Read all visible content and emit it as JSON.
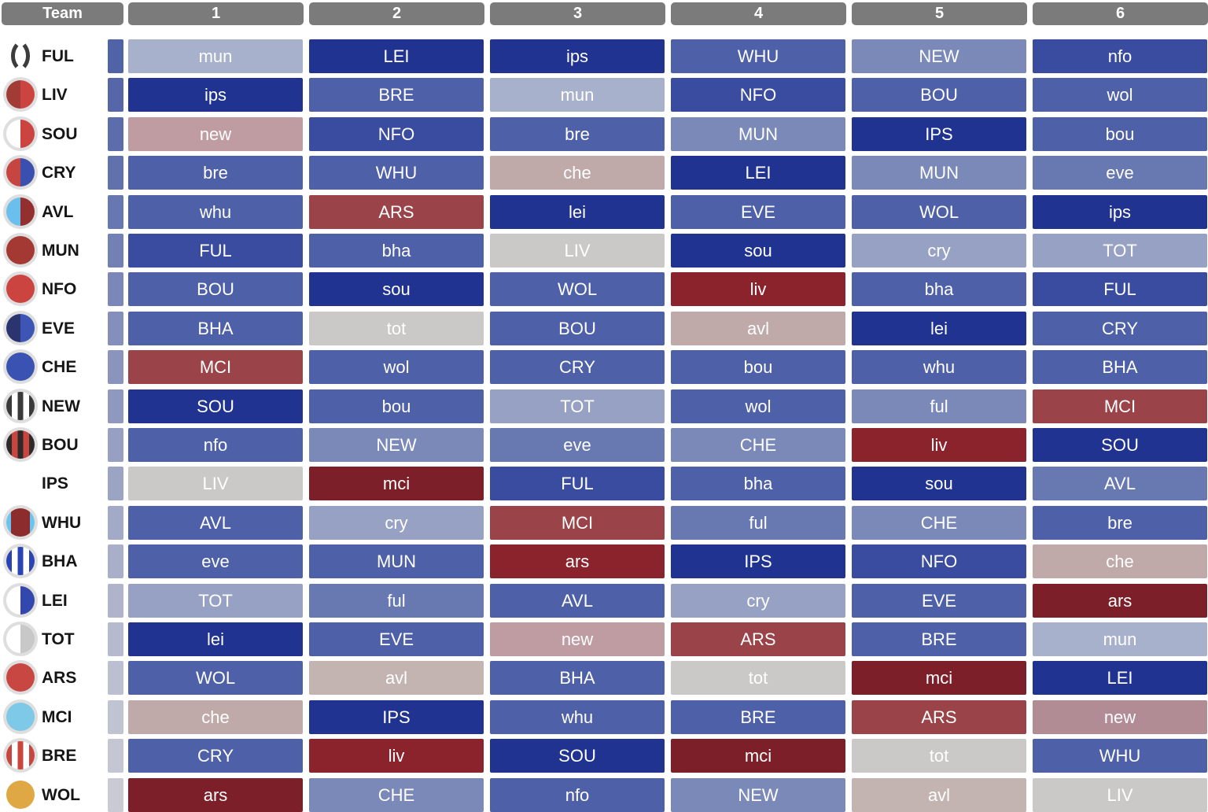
{
  "header": {
    "team_label": "Team",
    "gameweeks": [
      "1",
      "2",
      "3",
      "4",
      "5",
      "6"
    ],
    "bg": "#7B7B7B",
    "text_color": "#FFFFFF"
  },
  "palette": {
    "b1": "#203390",
    "b2": "#3A4C9F",
    "b3": "#4E60A7",
    "b4": "#6878B1",
    "b5": "#7B89B8",
    "b6": "#96A1C4",
    "b7": "#A8B1CB",
    "g": "#CBC9C7",
    "gp": "#C3B3B1",
    "p1": "#C0A9A9",
    "p": "#BF9CA1",
    "dp": "#B28C94",
    "r1": "#9A4349",
    "r2": "#8A232C",
    "r3": "#7D1F28"
  },
  "badge_ring_color": "#DEDEDE",
  "teams": [
    {
      "abbr": "FUL",
      "badge": {
        "type": "parens",
        "colors": [
          "#FFFFFF",
          "#3C3C3C"
        ],
        "ring": false
      },
      "strip_color": "#5063A7",
      "fixtures": [
        {
          "opp": "mun",
          "d": "b7"
        },
        {
          "opp": "LEI",
          "d": "b1"
        },
        {
          "opp": "ips",
          "d": "b1"
        },
        {
          "opp": "WHU",
          "d": "b3"
        },
        {
          "opp": "NEW",
          "d": "b5"
        },
        {
          "opp": "nfo",
          "d": "b2"
        }
      ]
    },
    {
      "abbr": "LIV",
      "badge": {
        "type": "split",
        "colors": [
          "#A23A35",
          "#CB4440"
        ],
        "ring": true
      },
      "strip_color": "#5566A9",
      "fixtures": [
        {
          "opp": "ips",
          "d": "b1"
        },
        {
          "opp": "BRE",
          "d": "b3"
        },
        {
          "opp": "mun",
          "d": "b7"
        },
        {
          "opp": "NFO",
          "d": "b2"
        },
        {
          "opp": "BOU",
          "d": "b3"
        },
        {
          "opp": "wol",
          "d": "b3"
        }
      ]
    },
    {
      "abbr": "SOU",
      "badge": {
        "type": "split",
        "colors": [
          "#FFFFFF",
          "#CB4440"
        ],
        "ring": true
      },
      "strip_color": "#5C6DAC",
      "fixtures": [
        {
          "opp": "new",
          "d": "p"
        },
        {
          "opp": "NFO",
          "d": "b2"
        },
        {
          "opp": "bre",
          "d": "b3"
        },
        {
          "opp": "MUN",
          "d": "b5"
        },
        {
          "opp": "IPS",
          "d": "b1"
        },
        {
          "opp": "bou",
          "d": "b3"
        }
      ]
    },
    {
      "abbr": "CRY",
      "badge": {
        "type": "split",
        "colors": [
          "#C64540",
          "#3B50AE"
        ],
        "ring": true
      },
      "strip_color": "#6071AE",
      "fixtures": [
        {
          "opp": "bre",
          "d": "b3"
        },
        {
          "opp": "WHU",
          "d": "b3"
        },
        {
          "opp": "che",
          "d": "p1"
        },
        {
          "opp": "LEI",
          "d": "b1"
        },
        {
          "opp": "MUN",
          "d": "b5"
        },
        {
          "opp": "eve",
          "d": "b4"
        }
      ]
    },
    {
      "abbr": "AVL",
      "badge": {
        "type": "split",
        "colors": [
          "#69C0ED",
          "#93302F"
        ],
        "ring": true
      },
      "strip_color": "#6677B1",
      "fixtures": [
        {
          "opp": "whu",
          "d": "b3"
        },
        {
          "opp": "ARS",
          "d": "r1"
        },
        {
          "opp": "lei",
          "d": "b1"
        },
        {
          "opp": "EVE",
          "d": "b3"
        },
        {
          "opp": "WOL",
          "d": "b3"
        },
        {
          "opp": "ips",
          "d": "b1"
        }
      ]
    },
    {
      "abbr": "MUN",
      "badge": {
        "type": "solid",
        "colors": [
          "#A33932"
        ],
        "ring": true
      },
      "strip_color": "#7380B5",
      "fixtures": [
        {
          "opp": "FUL",
          "d": "b2"
        },
        {
          "opp": "bha",
          "d": "b3"
        },
        {
          "opp": "LIV",
          "d": "g"
        },
        {
          "opp": "sou",
          "d": "b1"
        },
        {
          "opp": "cry",
          "d": "b6"
        },
        {
          "opp": "TOT",
          "d": "b6"
        }
      ]
    },
    {
      "abbr": "NFO",
      "badge": {
        "type": "solid",
        "colors": [
          "#CB4440"
        ],
        "ring": true
      },
      "strip_color": "#7B87B8",
      "fixtures": [
        {
          "opp": "BOU",
          "d": "b3"
        },
        {
          "opp": "sou",
          "d": "b1"
        },
        {
          "opp": "WOL",
          "d": "b3"
        },
        {
          "opp": "liv",
          "d": "r2"
        },
        {
          "opp": "bha",
          "d": "b3"
        },
        {
          "opp": "FUL",
          "d": "b2"
        }
      ]
    },
    {
      "abbr": "EVE",
      "badge": {
        "type": "split",
        "colors": [
          "#2A3570",
          "#3D55B5"
        ],
        "ring": true
      },
      "strip_color": "#8490BB",
      "fixtures": [
        {
          "opp": "BHA",
          "d": "b3"
        },
        {
          "opp": "tot",
          "d": "g"
        },
        {
          "opp": "BOU",
          "d": "b3"
        },
        {
          "opp": "avl",
          "d": "p1"
        },
        {
          "opp": "lei",
          "d": "b1"
        },
        {
          "opp": "CRY",
          "d": "b3"
        }
      ]
    },
    {
      "abbr": "CHE",
      "badge": {
        "type": "solid",
        "colors": [
          "#3A52B2"
        ],
        "ring": true
      },
      "strip_color": "#8A94BC",
      "fixtures": [
        {
          "opp": "MCI",
          "d": "r1"
        },
        {
          "opp": "wol",
          "d": "b3"
        },
        {
          "opp": "CRY",
          "d": "b3"
        },
        {
          "opp": "bou",
          "d": "b3"
        },
        {
          "opp": "whu",
          "d": "b3"
        },
        {
          "opp": "BHA",
          "d": "b3"
        }
      ]
    },
    {
      "abbr": "NEW",
      "badge": {
        "type": "stripes",
        "colors": [
          "#3A3A3A",
          "#FFFFFF",
          "#3A3A3A",
          "#FFFFFF",
          "#3A3A3A"
        ],
        "ring": true
      },
      "strip_color": "#8F99BF",
      "fixtures": [
        {
          "opp": "SOU",
          "d": "b1"
        },
        {
          "opp": "bou",
          "d": "b3"
        },
        {
          "opp": "TOT",
          "d": "b6"
        },
        {
          "opp": "wol",
          "d": "b3"
        },
        {
          "opp": "ful",
          "d": "b5"
        },
        {
          "opp": "MCI",
          "d": "r1"
        }
      ]
    },
    {
      "abbr": "BOU",
      "badge": {
        "type": "stripes",
        "colors": [
          "#2E2A28",
          "#C94540",
          "#2E2A28",
          "#C94540",
          "#2E2A28"
        ],
        "ring": true
      },
      "strip_color": "#97A0C2",
      "fixtures": [
        {
          "opp": "nfo",
          "d": "b3"
        },
        {
          "opp": "NEW",
          "d": "b5"
        },
        {
          "opp": "eve",
          "d": "b4"
        },
        {
          "opp": "CHE",
          "d": "b5"
        },
        {
          "opp": "liv",
          "d": "r2"
        },
        {
          "opp": "SOU",
          "d": "b1"
        }
      ]
    },
    {
      "abbr": "IPS",
      "badge": {
        "type": "none",
        "colors": [],
        "ring": false
      },
      "strip_color": "#9CA4C4",
      "fixtures": [
        {
          "opp": "LIV",
          "d": "g"
        },
        {
          "opp": "mci",
          "d": "r3"
        },
        {
          "opp": "FUL",
          "d": "b2"
        },
        {
          "opp": "bha",
          "d": "b3"
        },
        {
          "opp": "sou",
          "d": "b1"
        },
        {
          "opp": "AVL",
          "d": "b4"
        }
      ]
    },
    {
      "abbr": "WHU",
      "badge": {
        "type": "stripes3",
        "colors": [
          "#6BC4EE",
          "#8C2C2C",
          "#6BC4EE"
        ],
        "ring": true
      },
      "strip_color": "#A3AAC7",
      "fixtures": [
        {
          "opp": "AVL",
          "d": "b3"
        },
        {
          "opp": "cry",
          "d": "b6"
        },
        {
          "opp": "MCI",
          "d": "r1"
        },
        {
          "opp": "ful",
          "d": "b4"
        },
        {
          "opp": "CHE",
          "d": "b5"
        },
        {
          "opp": "bre",
          "d": "b3"
        }
      ]
    },
    {
      "abbr": "BHA",
      "badge": {
        "type": "stripes",
        "colors": [
          "#2B44B4",
          "#FFFFFF",
          "#2B44B4",
          "#FFFFFF",
          "#2B44B4"
        ],
        "ring": true
      },
      "strip_color": "#A9AFC9",
      "fixtures": [
        {
          "opp": "eve",
          "d": "b3"
        },
        {
          "opp": "MUN",
          "d": "b3"
        },
        {
          "opp": "ars",
          "d": "r2"
        },
        {
          "opp": "IPS",
          "d": "b1"
        },
        {
          "opp": "NFO",
          "d": "b2"
        },
        {
          "opp": "che",
          "d": "p1"
        }
      ]
    },
    {
      "abbr": "LEI",
      "badge": {
        "type": "split",
        "colors": [
          "#FFFFFF",
          "#3347AD"
        ],
        "ring": true
      },
      "strip_color": "#AFB4CB",
      "fixtures": [
        {
          "opp": "TOT",
          "d": "b6"
        },
        {
          "opp": "ful",
          "d": "b4"
        },
        {
          "opp": "AVL",
          "d": "b3"
        },
        {
          "opp": "cry",
          "d": "b6"
        },
        {
          "opp": "EVE",
          "d": "b3"
        },
        {
          "opp": "ars",
          "d": "r3"
        }
      ]
    },
    {
      "abbr": "TOT",
      "badge": {
        "type": "split",
        "colors": [
          "#FFFFFF",
          "#C8C8C8"
        ],
        "ring": true
      },
      "strip_color": "#B5BACE",
      "fixtures": [
        {
          "opp": "lei",
          "d": "b1"
        },
        {
          "opp": "EVE",
          "d": "b3"
        },
        {
          "opp": "new",
          "d": "p"
        },
        {
          "opp": "ARS",
          "d": "r1"
        },
        {
          "opp": "BRE",
          "d": "b3"
        },
        {
          "opp": "mun",
          "d": "b7"
        }
      ]
    },
    {
      "abbr": "ARS",
      "badge": {
        "type": "solid",
        "colors": [
          "#C94742"
        ],
        "ring": true
      },
      "strip_color": "#BBBFD0",
      "fixtures": [
        {
          "opp": "WOL",
          "d": "b3"
        },
        {
          "opp": "avl",
          "d": "gp"
        },
        {
          "opp": "BHA",
          "d": "b3"
        },
        {
          "opp": "tot",
          "d": "g"
        },
        {
          "opp": "mci",
          "d": "r3"
        },
        {
          "opp": "LEI",
          "d": "b1"
        }
      ]
    },
    {
      "abbr": "MCI",
      "badge": {
        "type": "solid",
        "colors": [
          "#7EC8E8"
        ],
        "ring": true
      },
      "strip_color": "#C0C3D2",
      "fixtures": [
        {
          "opp": "che",
          "d": "p1"
        },
        {
          "opp": "IPS",
          "d": "b1"
        },
        {
          "opp": "whu",
          "d": "b3"
        },
        {
          "opp": "BRE",
          "d": "b3"
        },
        {
          "opp": "ARS",
          "d": "r1"
        },
        {
          "opp": "new",
          "d": "dp"
        }
      ]
    },
    {
      "abbr": "BRE",
      "badge": {
        "type": "stripes",
        "colors": [
          "#C94540",
          "#FFFFFF",
          "#C94540",
          "#FFFFFF",
          "#C94540"
        ],
        "ring": true
      },
      "strip_color": "#C5C6D3",
      "fixtures": [
        {
          "opp": "CRY",
          "d": "b3"
        },
        {
          "opp": "liv",
          "d": "r2"
        },
        {
          "opp": "SOU",
          "d": "b1"
        },
        {
          "opp": "mci",
          "d": "r3"
        },
        {
          "opp": "tot",
          "d": "g"
        },
        {
          "opp": "WHU",
          "d": "b3"
        }
      ]
    },
    {
      "abbr": "WOL",
      "badge": {
        "type": "solid",
        "colors": [
          "#E0A844"
        ],
        "ring": false
      },
      "strip_color": "#C9CAD4",
      "fixtures": [
        {
          "opp": "ars",
          "d": "r3"
        },
        {
          "opp": "CHE",
          "d": "b5"
        },
        {
          "opp": "nfo",
          "d": "b3"
        },
        {
          "opp": "NEW",
          "d": "b5"
        },
        {
          "opp": "avl",
          "d": "gp"
        },
        {
          "opp": "LIV",
          "d": "g"
        }
      ]
    }
  ]
}
